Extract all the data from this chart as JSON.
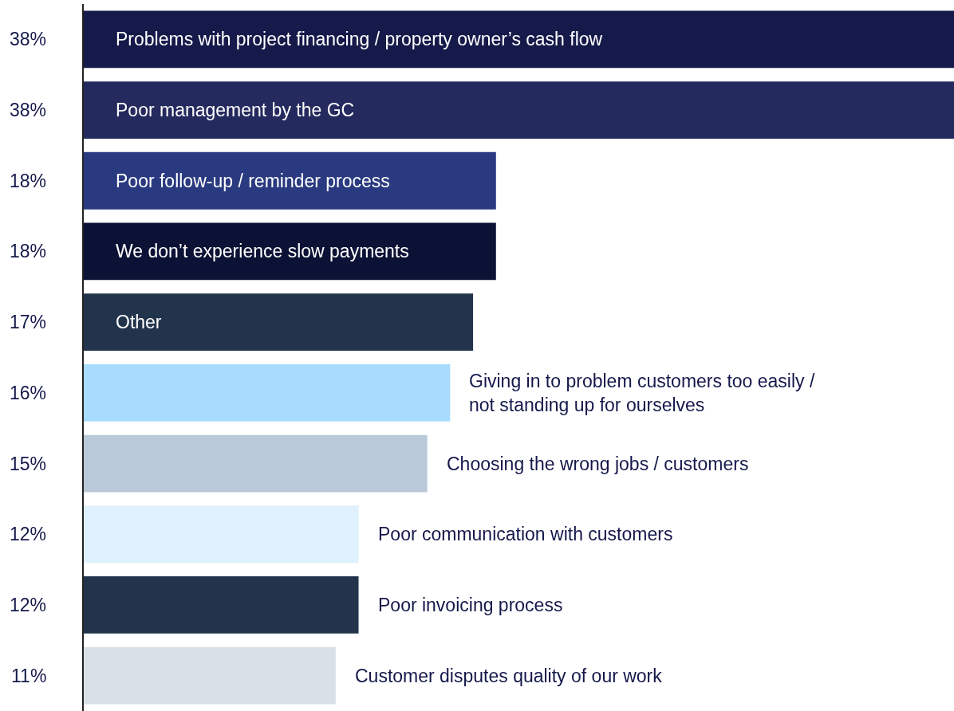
{
  "chart_data": {
    "type": "bar",
    "orientation": "horizontal",
    "categories": [
      "Problems with project financing / property owner’s cash flow",
      "Poor management by the GC",
      "Poor follow-up / reminder process",
      "We don’t experience slow payments",
      "Other",
      "Giving in to problem customers too easily /\nnot standing up for ourselves",
      "Choosing the wrong jobs / customers",
      "Poor communication with customers",
      "Poor invoicing process",
      "Customer disputes quality of our work"
    ],
    "values": [
      38,
      38,
      18,
      18,
      17,
      16,
      15,
      12,
      12,
      11
    ],
    "value_labels": [
      "38%",
      "38%",
      "18%",
      "18%",
      "17%",
      "16%",
      "15%",
      "12%",
      "12%",
      "11%"
    ],
    "colors": [
      "#161a4a",
      "#252a5e",
      "#2a3a80",
      "#0c1235",
      "#22344c",
      "#a8dcfc",
      "#b9c9d8",
      "#dff1fe",
      "#22344c",
      "#d9e1e8"
    ],
    "xlim": [
      0,
      38
    ],
    "legend": false
  }
}
